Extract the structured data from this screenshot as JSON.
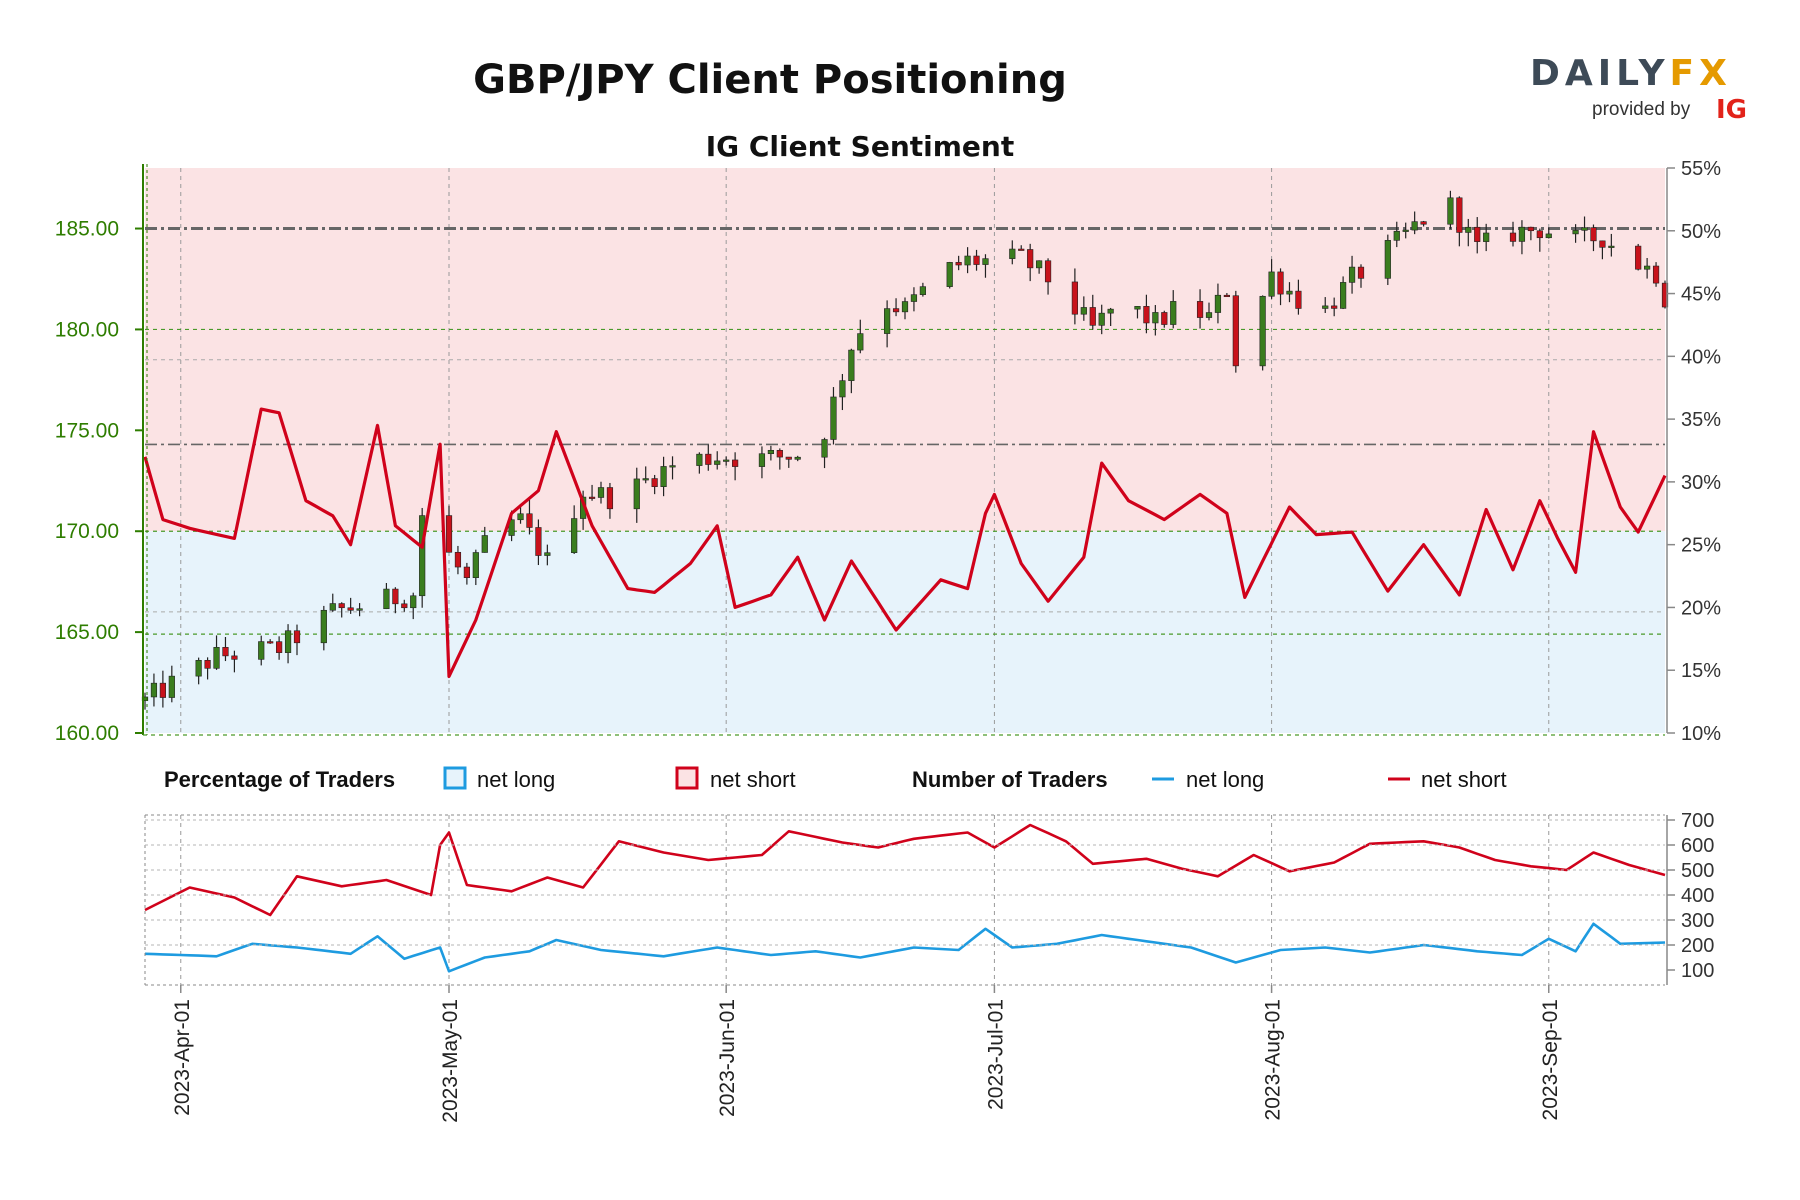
{
  "header": {
    "title": "GBP/JPY Client Positioning",
    "subtitle": "IG Client Sentiment"
  },
  "brand": {
    "name_dark": "DAILY",
    "name_accent": "FX",
    "provided_by": "provided by",
    "partner": "IG"
  },
  "legend": {
    "percentage_heading": "Percentage of Traders",
    "percentage_long": "net long",
    "percentage_short": "net short",
    "number_heading": "Number of Traders",
    "number_long": "net long",
    "number_short": "net short"
  },
  "colors": {
    "long": "#1e9be0",
    "short": "#d0021b",
    "long_fill": "#e7f3fb",
    "short_fill": "#fbe3e4",
    "candle_up": "#3a7d1e",
    "candle_down": "#c8121b",
    "price_axis": "#2e7d00"
  },
  "chart_data": {
    "type": "candlestick+line",
    "x_start": "2023-03-28",
    "x_end": "2023-09-14",
    "x_ticks": [
      "2023-04-01",
      "2023-05-01",
      "2023-06-01",
      "2023-07-01",
      "2023-08-01",
      "2023-09-01"
    ],
    "x_tick_labels": [
      "2023-Apr-01",
      "2023-May-01",
      "2023-Jun-01",
      "2023-Jul-01",
      "2023-Aug-01",
      "2023-Sep-01"
    ],
    "price_axis": {
      "ylim": [
        160,
        188
      ],
      "ticks": [
        160,
        165,
        170,
        175,
        180,
        185
      ],
      "tick_labels": [
        "160.00",
        "165.00",
        "170.00",
        "175.00",
        "180.00",
        "185.00"
      ]
    },
    "pct_axis": {
      "ylim": [
        10,
        55
      ],
      "ticks": [
        10,
        15,
        20,
        25,
        30,
        35,
        40,
        45,
        50,
        55
      ],
      "tick_labels": [
        "10%",
        "15%",
        "20%",
        "25%",
        "30%",
        "35%",
        "40%",
        "45%",
        "50%",
        "55%"
      ]
    },
    "count_axis": {
      "ylim": [
        40,
        720
      ],
      "ticks": [
        100,
        200,
        300,
        400,
        500,
        600,
        700
      ],
      "tick_labels": [
        "100",
        "200",
        "300",
        "400",
        "500",
        "600",
        "700"
      ]
    },
    "price_keypoints": [
      [
        "2023-03-28",
        161.6
      ],
      [
        "2023-04-05",
        163.8
      ],
      [
        "2023-04-12",
        164.2
      ],
      [
        "2023-04-18",
        166.0
      ],
      [
        "2023-04-22",
        166.4
      ],
      [
        "2023-04-27",
        166.9
      ],
      [
        "2023-04-28",
        170.8
      ],
      [
        "2023-05-03",
        167.5
      ],
      [
        "2023-05-06",
        170.2
      ],
      [
        "2023-05-09",
        170.5
      ],
      [
        "2023-05-12",
        168.5
      ],
      [
        "2023-05-16",
        172.0
      ],
      [
        "2023-05-20",
        171.6
      ],
      [
        "2023-05-24",
        172.8
      ],
      [
        "2023-05-27",
        173.5
      ],
      [
        "2023-05-31",
        173.7
      ],
      [
        "2023-06-05",
        173.6
      ],
      [
        "2023-06-09",
        173.8
      ],
      [
        "2023-06-12",
        175.0
      ],
      [
        "2023-06-15",
        179.2
      ],
      [
        "2023-06-18",
        181.5
      ],
      [
        "2023-06-21",
        181.0
      ],
      [
        "2023-06-25",
        182.8
      ],
      [
        "2023-06-28",
        183.4
      ],
      [
        "2023-07-01",
        183.4
      ],
      [
        "2023-07-04",
        183.5
      ],
      [
        "2023-07-07",
        182.5
      ],
      [
        "2023-07-12",
        180.0
      ],
      [
        "2023-07-15",
        181.4
      ],
      [
        "2023-07-19",
        180.3
      ],
      [
        "2023-07-22",
        181.2
      ],
      [
        "2023-07-25",
        180.6
      ],
      [
        "2023-07-27",
        182.0
      ],
      [
        "2023-07-28",
        178.5
      ],
      [
        "2023-08-01",
        182.7
      ],
      [
        "2023-08-04",
        181.5
      ],
      [
        "2023-08-07",
        181.0
      ],
      [
        "2023-08-10",
        182.5
      ],
      [
        "2023-08-14",
        183.9
      ],
      [
        "2023-08-18",
        185.5
      ],
      [
        "2023-08-21",
        186.1
      ],
      [
        "2023-08-24",
        184.0
      ],
      [
        "2023-08-28",
        184.8
      ],
      [
        "2023-08-31",
        185.0
      ],
      [
        "2023-09-04",
        184.4
      ],
      [
        "2023-09-07",
        184.6
      ],
      [
        "2023-09-10",
        183.5
      ],
      [
        "2023-09-13",
        182.8
      ],
      [
        "2023-09-14",
        181.6
      ]
    ],
    "series": [
      {
        "name": "net short",
        "unit": "percent",
        "keypoints": [
          [
            "2023-03-28",
            32
          ],
          [
            "2023-03-30",
            27
          ],
          [
            "2023-04-02",
            26.3
          ],
          [
            "2023-04-07",
            25.5
          ],
          [
            "2023-04-10",
            35.8
          ],
          [
            "2023-04-12",
            35.5
          ],
          [
            "2023-04-15",
            28.5
          ],
          [
            "2023-04-18",
            27.3
          ],
          [
            "2023-04-20",
            25
          ],
          [
            "2023-04-23",
            34.5
          ],
          [
            "2023-04-25",
            26.5
          ],
          [
            "2023-04-28",
            24.8
          ],
          [
            "2023-04-30",
            33
          ],
          [
            "2023-05-01",
            14.5
          ],
          [
            "2023-05-04",
            19
          ],
          [
            "2023-05-08",
            27.5
          ],
          [
            "2023-05-11",
            29.3
          ],
          [
            "2023-05-13",
            34
          ],
          [
            "2023-05-17",
            26.5
          ],
          [
            "2023-05-21",
            21.5
          ],
          [
            "2023-05-24",
            21.2
          ],
          [
            "2023-05-28",
            23.5
          ],
          [
            "2023-05-31",
            26.5
          ],
          [
            "2023-06-02",
            20
          ],
          [
            "2023-06-06",
            21
          ],
          [
            "2023-06-09",
            24
          ],
          [
            "2023-06-12",
            19
          ],
          [
            "2023-06-15",
            23.7
          ],
          [
            "2023-06-20",
            18.2
          ],
          [
            "2023-06-25",
            22.2
          ],
          [
            "2023-06-28",
            21.5
          ],
          [
            "2023-06-30",
            27.5
          ],
          [
            "2023-07-01",
            29
          ],
          [
            "2023-07-04",
            23.5
          ],
          [
            "2023-07-07",
            20.5
          ],
          [
            "2023-07-11",
            24
          ],
          [
            "2023-07-13",
            31.5
          ],
          [
            "2023-07-16",
            28.5
          ],
          [
            "2023-07-20",
            27
          ],
          [
            "2023-07-24",
            29
          ],
          [
            "2023-07-27",
            27.5
          ],
          [
            "2023-07-29",
            20.8
          ],
          [
            "2023-08-03",
            28
          ],
          [
            "2023-08-06",
            25.8
          ],
          [
            "2023-08-10",
            26
          ],
          [
            "2023-08-14",
            21.3
          ],
          [
            "2023-08-18",
            25
          ],
          [
            "2023-08-22",
            21
          ],
          [
            "2023-08-25",
            27.8
          ],
          [
            "2023-08-28",
            23
          ],
          [
            "2023-08-31",
            28.5
          ],
          [
            "2023-09-02",
            25.5
          ],
          [
            "2023-09-04",
            22.8
          ],
          [
            "2023-09-06",
            34
          ],
          [
            "2023-09-09",
            28
          ],
          [
            "2023-09-11",
            26
          ],
          [
            "2023-09-14",
            30.5
          ]
        ]
      },
      {
        "name": "net short",
        "unit": "traders",
        "keypoints": [
          [
            "2023-03-28",
            340
          ],
          [
            "2023-04-02",
            430
          ],
          [
            "2023-04-07",
            390
          ],
          [
            "2023-04-11",
            320
          ],
          [
            "2023-04-14",
            475
          ],
          [
            "2023-04-19",
            435
          ],
          [
            "2023-04-24",
            460
          ],
          [
            "2023-04-29",
            400
          ],
          [
            "2023-04-30",
            600
          ],
          [
            "2023-05-01",
            650
          ],
          [
            "2023-05-03",
            440
          ],
          [
            "2023-05-08",
            415
          ],
          [
            "2023-05-12",
            470
          ],
          [
            "2023-05-16",
            430
          ],
          [
            "2023-05-20",
            615
          ],
          [
            "2023-05-25",
            570
          ],
          [
            "2023-05-30",
            540
          ],
          [
            "2023-06-05",
            560
          ],
          [
            "2023-06-08",
            655
          ],
          [
            "2023-06-14",
            610
          ],
          [
            "2023-06-18",
            590
          ],
          [
            "2023-06-22",
            625
          ],
          [
            "2023-06-28",
            650
          ],
          [
            "2023-07-01",
            590
          ],
          [
            "2023-07-05",
            680
          ],
          [
            "2023-07-09",
            615
          ],
          [
            "2023-07-12",
            525
          ],
          [
            "2023-07-18",
            545
          ],
          [
            "2023-07-22",
            505
          ],
          [
            "2023-07-26",
            475
          ],
          [
            "2023-07-30",
            560
          ],
          [
            "2023-08-03",
            495
          ],
          [
            "2023-08-08",
            530
          ],
          [
            "2023-08-12",
            605
          ],
          [
            "2023-08-18",
            615
          ],
          [
            "2023-08-22",
            590
          ],
          [
            "2023-08-26",
            540
          ],
          [
            "2023-08-30",
            515
          ],
          [
            "2023-09-03",
            500
          ],
          [
            "2023-09-06",
            570
          ],
          [
            "2023-09-10",
            520
          ],
          [
            "2023-09-14",
            480
          ]
        ]
      },
      {
        "name": "net long",
        "unit": "traders",
        "keypoints": [
          [
            "2023-03-28",
            165
          ],
          [
            "2023-04-05",
            155
          ],
          [
            "2023-04-09",
            205
          ],
          [
            "2023-04-14",
            190
          ],
          [
            "2023-04-20",
            165
          ],
          [
            "2023-04-23",
            235
          ],
          [
            "2023-04-26",
            145
          ],
          [
            "2023-04-30",
            190
          ],
          [
            "2023-05-01",
            95
          ],
          [
            "2023-05-05",
            150
          ],
          [
            "2023-05-10",
            175
          ],
          [
            "2023-05-13",
            220
          ],
          [
            "2023-05-18",
            180
          ],
          [
            "2023-05-25",
            155
          ],
          [
            "2023-05-31",
            190
          ],
          [
            "2023-06-06",
            160
          ],
          [
            "2023-06-11",
            175
          ],
          [
            "2023-06-16",
            150
          ],
          [
            "2023-06-22",
            190
          ],
          [
            "2023-06-27",
            180
          ],
          [
            "2023-06-30",
            265
          ],
          [
            "2023-07-03",
            190
          ],
          [
            "2023-07-08",
            205
          ],
          [
            "2023-07-13",
            240
          ],
          [
            "2023-07-18",
            215
          ],
          [
            "2023-07-23",
            190
          ],
          [
            "2023-07-28",
            130
          ],
          [
            "2023-08-02",
            180
          ],
          [
            "2023-08-07",
            190
          ],
          [
            "2023-08-12",
            170
          ],
          [
            "2023-08-18",
            200
          ],
          [
            "2023-08-24",
            175
          ],
          [
            "2023-08-29",
            160
          ],
          [
            "2023-09-01",
            225
          ],
          [
            "2023-09-04",
            175
          ],
          [
            "2023-09-06",
            285
          ],
          [
            "2023-09-09",
            205
          ],
          [
            "2023-09-14",
            210
          ]
        ]
      }
    ],
    "reference_lines": [
      {
        "axis": "price",
        "value": 185,
        "style": "dash-dot"
      },
      {
        "axis": "price",
        "value": 174.3,
        "style": "dash-dot"
      },
      {
        "axis": "price",
        "value": 180
      },
      {
        "axis": "price",
        "value": 178.5
      },
      {
        "axis": "price",
        "value": 170
      },
      {
        "axis": "price",
        "value": 166
      },
      {
        "axis": "price",
        "value": 164.9
      }
    ]
  }
}
